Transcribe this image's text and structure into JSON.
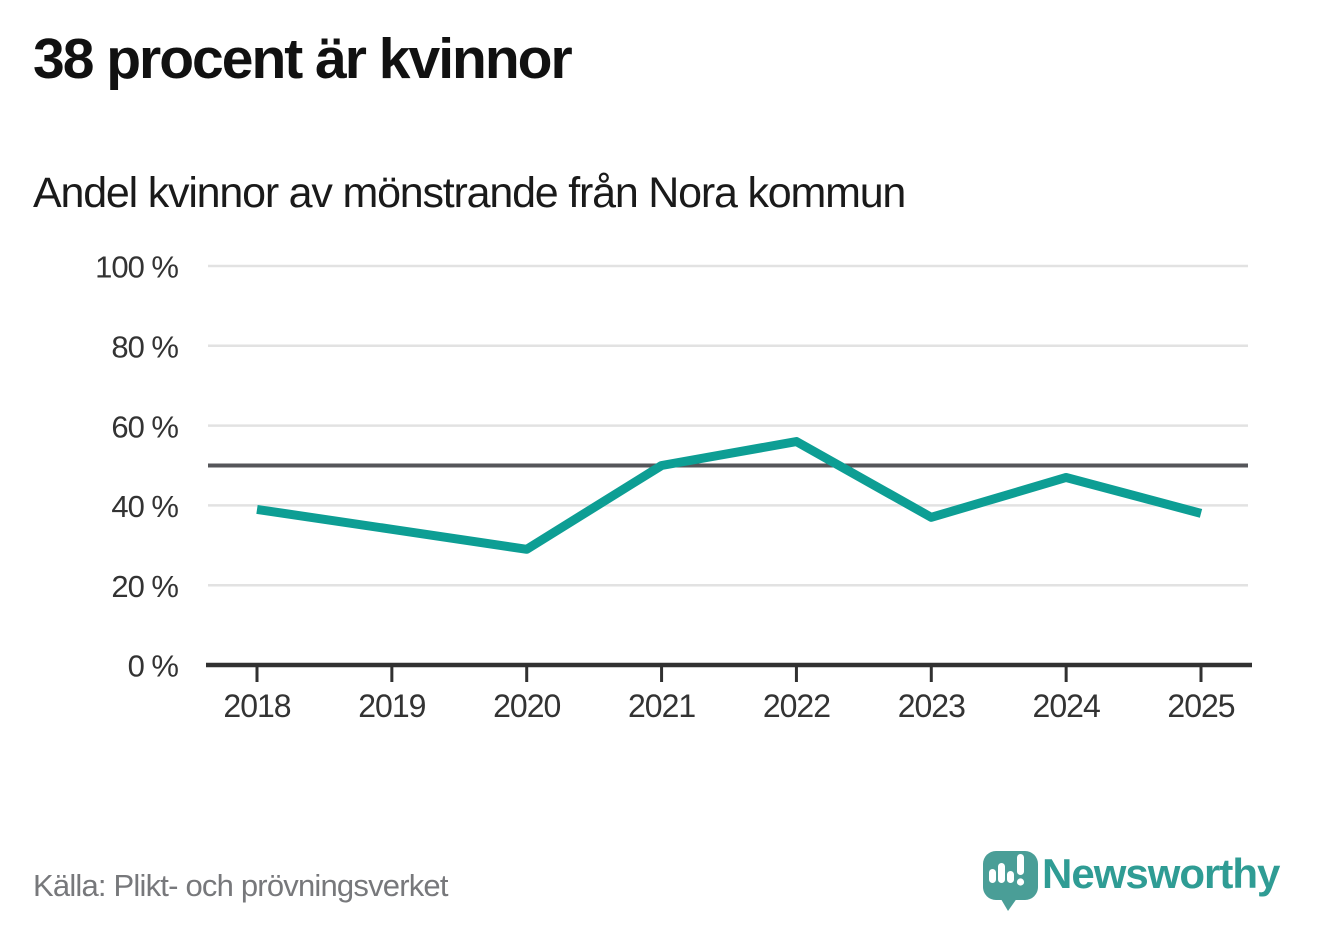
{
  "header": {
    "title": "38 procent är kvinnor",
    "subtitle": "Andel kvinnor av mönstrande från Nora kommun"
  },
  "chart_data": {
    "type": "line",
    "title": "38 procent är kvinnor",
    "subtitle": "Andel kvinnor av mönstrande från Nora kommun",
    "x": [
      "2018",
      "2019",
      "2020",
      "2021",
      "2022",
      "2023",
      "2024",
      "2025"
    ],
    "series": [
      {
        "name": "Andel kvinnor av mönstrande",
        "values": [
          39,
          34,
          29,
          50,
          56,
          37,
          47,
          38
        ]
      }
    ],
    "unit": "%",
    "xlabel": "",
    "ylabel": "",
    "ylim": [
      0,
      100
    ],
    "yticks": [
      0,
      20,
      40,
      60,
      80,
      100
    ],
    "ytick_labels": [
      "0 %",
      "20 %",
      "40 %",
      "60 %",
      "80 %",
      "100 %"
    ],
    "reference_line": 50,
    "grid": true,
    "legend": "none"
  },
  "colors": {
    "line": "#0d9e94",
    "grid": "#e2e2e2",
    "reference": "#55565a",
    "axis": "#313131",
    "tick_text": "#333333",
    "logo_bubble": "#4a9e97",
    "logo_text": "#2f9c94"
  },
  "footer": {
    "source": "Källa: Plikt- och prövningsverket",
    "brand": "Newsworthy"
  }
}
